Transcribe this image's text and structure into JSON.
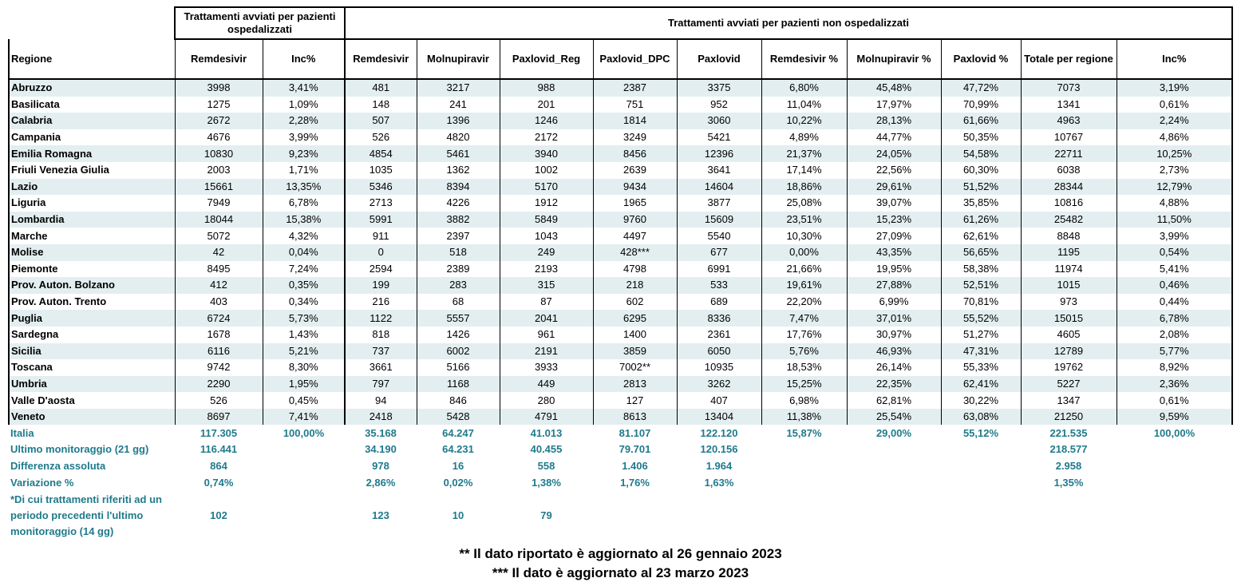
{
  "headers": {
    "group_hospital": "Trattamenti avviati per pazienti ospedalizzati",
    "group_nonhospital": "Trattamenti avviati per pazienti non ospedalizzati",
    "columns": [
      "Regione",
      "Remdesivir",
      "Inc%",
      "Remdesivir",
      "Molnupiravir",
      "Paxlovid_Reg",
      "Paxlovid_DPC",
      "Paxlovid",
      "Remdesivir %",
      "Molnupiravir %",
      "Paxlovid %",
      "Totale per regione",
      "Inc%"
    ]
  },
  "rows": [
    [
      "Abruzzo",
      "3998",
      "3,41%",
      "481",
      "3217",
      "988",
      "2387",
      "3375",
      "6,80%",
      "45,48%",
      "47,72%",
      "7073",
      "3,19%"
    ],
    [
      "Basilicata",
      "1275",
      "1,09%",
      "148",
      "241",
      "201",
      "751",
      "952",
      "11,04%",
      "17,97%",
      "70,99%",
      "1341",
      "0,61%"
    ],
    [
      "Calabria",
      "2672",
      "2,28%",
      "507",
      "1396",
      "1246",
      "1814",
      "3060",
      "10,22%",
      "28,13%",
      "61,66%",
      "4963",
      "2,24%"
    ],
    [
      "Campania",
      "4676",
      "3,99%",
      "526",
      "4820",
      "2172",
      "3249",
      "5421",
      "4,89%",
      "44,77%",
      "50,35%",
      "10767",
      "4,86%"
    ],
    [
      "Emilia Romagna",
      "10830",
      "9,23%",
      "4854",
      "5461",
      "3940",
      "8456",
      "12396",
      "21,37%",
      "24,05%",
      "54,58%",
      "22711",
      "10,25%"
    ],
    [
      "Friuli Venezia Giulia",
      "2003",
      "1,71%",
      "1035",
      "1362",
      "1002",
      "2639",
      "3641",
      "17,14%",
      "22,56%",
      "60,30%",
      "6038",
      "2,73%"
    ],
    [
      "Lazio",
      "15661",
      "13,35%",
      "5346",
      "8394",
      "5170",
      "9434",
      "14604",
      "18,86%",
      "29,61%",
      "51,52%",
      "28344",
      "12,79%"
    ],
    [
      "Liguria",
      "7949",
      "6,78%",
      "2713",
      "4226",
      "1912",
      "1965",
      "3877",
      "25,08%",
      "39,07%",
      "35,85%",
      "10816",
      "4,88%"
    ],
    [
      "Lombardia",
      "18044",
      "15,38%",
      "5991",
      "3882",
      "5849",
      "9760",
      "15609",
      "23,51%",
      "15,23%",
      "61,26%",
      "25482",
      "11,50%"
    ],
    [
      "Marche",
      "5072",
      "4,32%",
      "911",
      "2397",
      "1043",
      "4497",
      "5540",
      "10,30%",
      "27,09%",
      "62,61%",
      "8848",
      "3,99%"
    ],
    [
      "Molise",
      "42",
      "0,04%",
      "0",
      "518",
      "249",
      "428***",
      "677",
      "0,00%",
      "43,35%",
      "56,65%",
      "1195",
      "0,54%"
    ],
    [
      "Piemonte",
      "8495",
      "7,24%",
      "2594",
      "2389",
      "2193",
      "4798",
      "6991",
      "21,66%",
      "19,95%",
      "58,38%",
      "11974",
      "5,41%"
    ],
    [
      "Prov. Auton. Bolzano",
      "412",
      "0,35%",
      "199",
      "283",
      "315",
      "218",
      "533",
      "19,61%",
      "27,88%",
      "52,51%",
      "1015",
      "0,46%"
    ],
    [
      "Prov. Auton. Trento",
      "403",
      "0,34%",
      "216",
      "68",
      "87",
      "602",
      "689",
      "22,20%",
      "6,99%",
      "70,81%",
      "973",
      "0,44%"
    ],
    [
      "Puglia",
      "6724",
      "5,73%",
      "1122",
      "5557",
      "2041",
      "6295",
      "8336",
      "7,47%",
      "37,01%",
      "55,52%",
      "15015",
      "6,78%"
    ],
    [
      "Sardegna",
      "1678",
      "1,43%",
      "818",
      "1426",
      "961",
      "1400",
      "2361",
      "17,76%",
      "30,97%",
      "51,27%",
      "4605",
      "2,08%"
    ],
    [
      "Sicilia",
      "6116",
      "5,21%",
      "737",
      "6002",
      "2191",
      "3859",
      "6050",
      "5,76%",
      "46,93%",
      "47,31%",
      "12789",
      "5,77%"
    ],
    [
      "Toscana",
      "9742",
      "8,30%",
      "3661",
      "5166",
      "3933",
      "7002**",
      "10935",
      "18,53%",
      "26,14%",
      "55,33%",
      "19762",
      "8,92%"
    ],
    [
      "Umbria",
      "2290",
      "1,95%",
      "797",
      "1168",
      "449",
      "2813",
      "3262",
      "15,25%",
      "22,35%",
      "62,41%",
      "5227",
      "2,36%"
    ],
    [
      "Valle D'aosta",
      "526",
      "0,45%",
      "94",
      "846",
      "280",
      "127",
      "407",
      "6,98%",
      "62,81%",
      "30,22%",
      "1347",
      "0,61%"
    ],
    [
      "Veneto",
      "8697",
      "7,41%",
      "2418",
      "5428",
      "4791",
      "8613",
      "13404",
      "11,38%",
      "25,54%",
      "63,08%",
      "21250",
      "9,59%"
    ]
  ],
  "summary": [
    [
      "Italia",
      "117.305",
      "100,00%",
      "35.168",
      "64.247",
      "41.013",
      "81.107",
      "122.120",
      "15,87%",
      "29,00%",
      "55,12%",
      "221.535",
      "100,00%"
    ],
    [
      "Ultimo monitoraggio (21 gg)",
      "116.441",
      "",
      "34.190",
      "64.231",
      "40.455",
      "79.701",
      "120.156",
      "",
      "",
      "",
      "218.577",
      ""
    ],
    [
      "Differenza assoluta",
      "864",
      "",
      "978",
      "16",
      "558",
      "1.406",
      "1.964",
      "",
      "",
      "",
      "2.958",
      ""
    ],
    [
      "Variazione %",
      "0,74%",
      "",
      "2,86%",
      "0,02%",
      "1,38%",
      "1,76%",
      "1,63%",
      "",
      "",
      "",
      "1,35%",
      ""
    ]
  ],
  "note": {
    "label": "*Di cui trattamenti riferiti ad un periodo precedenti l'ultimo monitoraggio (14 gg)",
    "values": [
      "102",
      "",
      "123",
      "10",
      "79",
      "",
      "",
      "",
      "",
      "",
      "",
      ""
    ]
  },
  "footnotes": {
    "line1": "** Il dato riportato è aggiornato al 26 gennaio 2023",
    "line2": "*** Il dato è aggiornato al 23 marzo 2023"
  },
  "colors": {
    "band": "#e3eef0",
    "summary_text": "#1f7a8c"
  }
}
